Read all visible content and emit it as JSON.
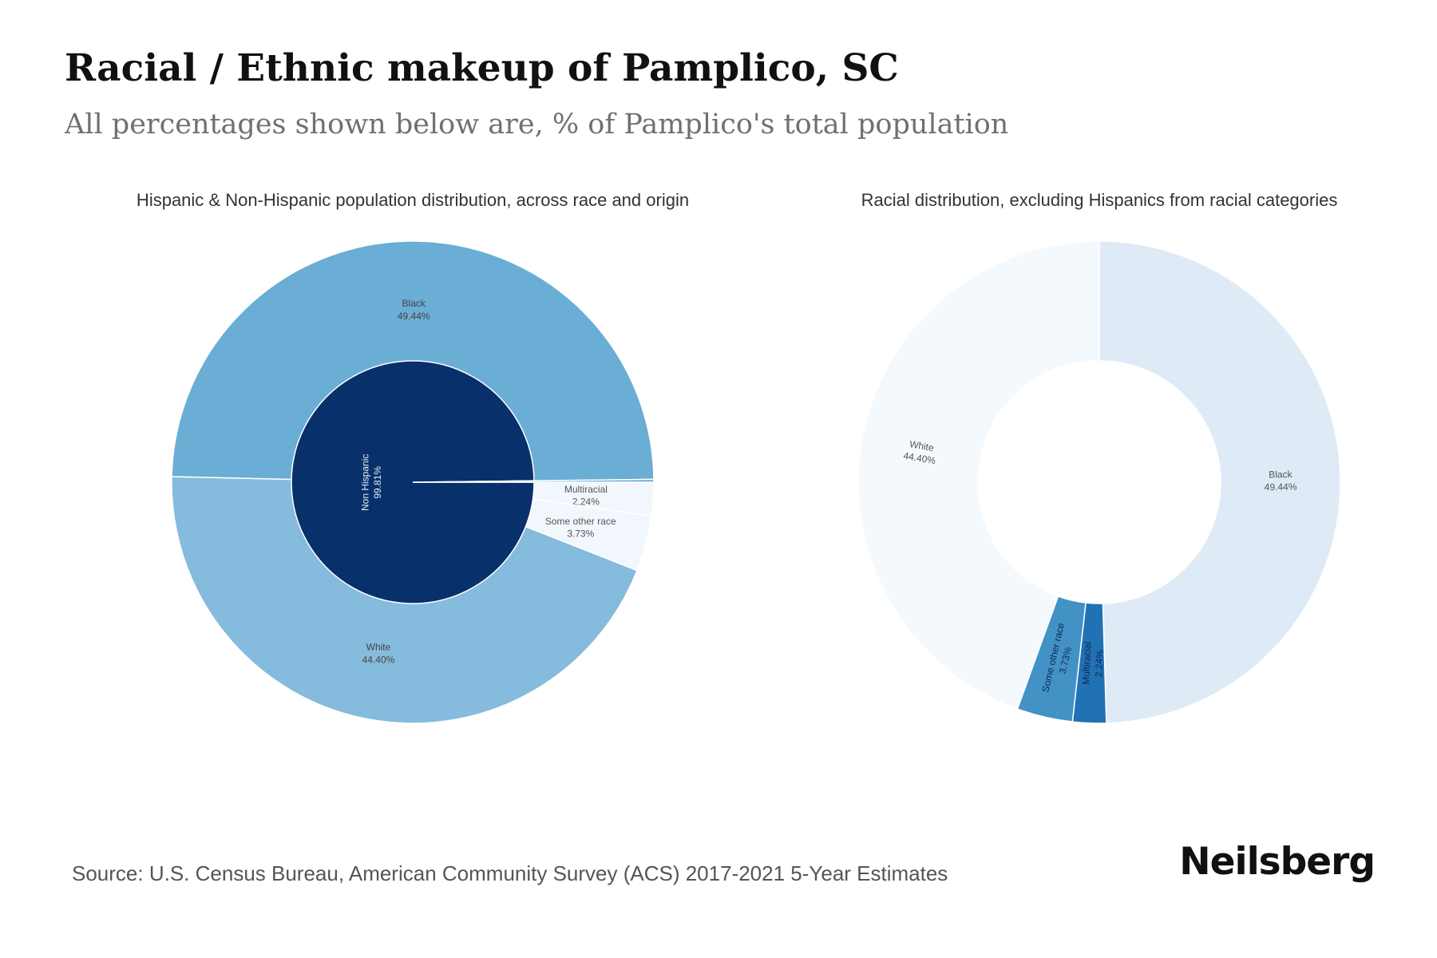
{
  "header": {
    "title": "Racial / Ethnic makeup of Pamplico, SC",
    "subtitle": "All percentages shown below are, % of Pamplico's total population"
  },
  "chart_data": [
    {
      "type": "pie",
      "title": "Hispanic & Non-Hispanic population distribution, across race and origin",
      "inner": [
        {
          "label": "Non Hispanic",
          "value": 99.81,
          "display": "99.81%",
          "color": "#08306b"
        },
        {
          "label": "",
          "value": 0.19,
          "display": "",
          "color": "#ffffff"
        }
      ],
      "outer": [
        {
          "label": "Multiracial",
          "value": 2.24,
          "display": "2.24%",
          "color": "#f2f7fd"
        },
        {
          "label": "Some other race",
          "value": 3.73,
          "display": "3.73%",
          "color": "#f2f7fd"
        },
        {
          "label": "White",
          "value": 44.4,
          "display": "44.40%",
          "color": "#85bbdc"
        },
        {
          "label": "Black",
          "value": 49.44,
          "display": "49.44%",
          "color": "#6aadd5"
        },
        {
          "label": "",
          "value": 0.19,
          "display": "",
          "color": "#6aadd5"
        }
      ]
    },
    {
      "type": "pie",
      "title": "Racial distribution, excluding Hispanics from racial categories",
      "slices": [
        {
          "label": "Black",
          "value": 49.44,
          "display": "49.44%",
          "color": "#deebf7"
        },
        {
          "label": "Multiracial",
          "value": 2.24,
          "display": "2.24%",
          "color": "#2171b5"
        },
        {
          "label": "Some other race",
          "value": 3.73,
          "display": "3.73%",
          "color": "#4292c6"
        },
        {
          "label": "White",
          "value": 44.4,
          "display": "44.40%",
          "color": "#f4f9fe"
        }
      ]
    }
  ],
  "footer": {
    "source": "Source: U.S. Census Bureau, American Community Survey (ACS) 2017-2021 5-Year Estimates",
    "brand": "Neilsberg"
  }
}
